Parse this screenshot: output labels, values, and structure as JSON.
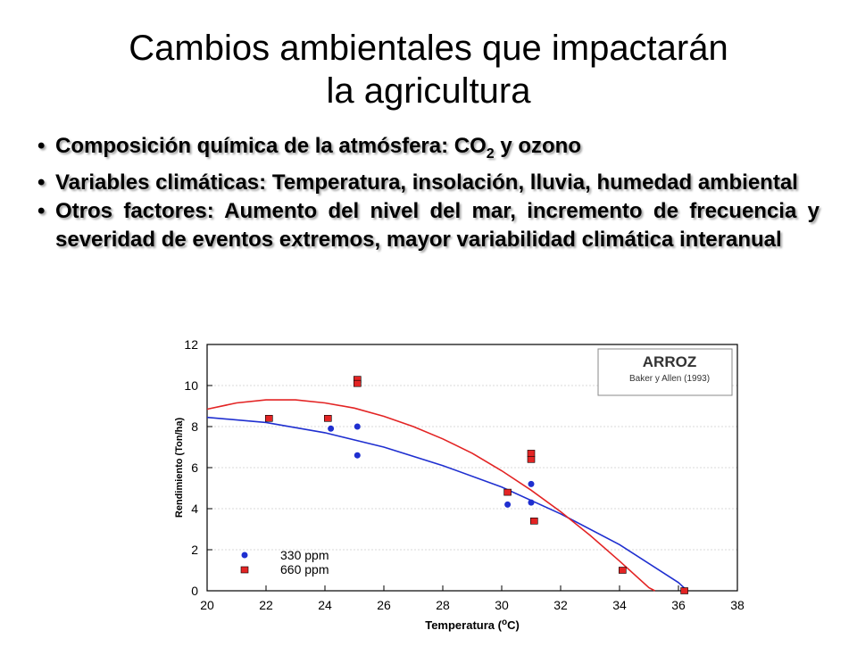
{
  "slide": {
    "title_line1": "Cambios ambientales que impactarán",
    "title_line2": "la agricultura",
    "bullets": [
      {
        "pre": "Composición química de la atmósfera: CO",
        "sub": "2",
        "post": " y ozono"
      },
      {
        "text": "Variables climáticas: Temperatura, insolación, lluvia, humedad ambiental"
      },
      {
        "text": "Otros factores: Aumento del nivel del mar, incremento de frecuencia y severidad de eventos extremos, mayor variabilidad climática interanual"
      }
    ]
  },
  "chart_data": {
    "type": "scatter",
    "title": "ARROZ",
    "subtitle": "Baker y Allen (1993)",
    "xlabel": "Temperatura (°C)",
    "ylabel": "Rendimiento (Ton/ha)",
    "xlim": [
      20,
      38
    ],
    "ylim": [
      0,
      12
    ],
    "xticks": [
      20,
      22,
      24,
      26,
      28,
      30,
      32,
      34,
      36,
      38
    ],
    "yticks": [
      0,
      2,
      4,
      6,
      8,
      10,
      12
    ],
    "legend_position": "bottom-left",
    "series": [
      {
        "name": "330 ppm",
        "color": "#1f2fd0",
        "marker": "circle",
        "points": [
          [
            24.2,
            7.9
          ],
          [
            25.1,
            8.0
          ],
          [
            25.1,
            6.6
          ],
          [
            30.2,
            4.2
          ],
          [
            30.2,
            4.8
          ],
          [
            31.0,
            5.2
          ],
          [
            31.0,
            4.3
          ],
          [
            36.2,
            0.0
          ]
        ],
        "fit": [
          [
            20,
            8.45
          ],
          [
            22,
            8.2
          ],
          [
            24,
            7.7
          ],
          [
            26,
            7.0
          ],
          [
            28,
            6.1
          ],
          [
            30,
            5.05
          ],
          [
            32,
            3.75
          ],
          [
            34,
            2.25
          ],
          [
            36,
            0.4
          ],
          [
            36.3,
            0.0
          ]
        ]
      },
      {
        "name": "660 ppm",
        "color": "#e32424",
        "marker": "square",
        "points": [
          [
            22.1,
            8.4
          ],
          [
            24.1,
            8.4
          ],
          [
            25.1,
            10.3
          ],
          [
            25.1,
            10.1
          ],
          [
            30.2,
            4.8
          ],
          [
            31.0,
            6.7
          ],
          [
            31.0,
            6.4
          ],
          [
            31.1,
            3.4
          ],
          [
            34.1,
            1.0
          ],
          [
            36.2,
            0.0
          ]
        ],
        "fit": [
          [
            20,
            8.85
          ],
          [
            21,
            9.15
          ],
          [
            22,
            9.3
          ],
          [
            23,
            9.3
          ],
          [
            24,
            9.15
          ],
          [
            25,
            8.9
          ],
          [
            26,
            8.5
          ],
          [
            27,
            8.0
          ],
          [
            28,
            7.4
          ],
          [
            29,
            6.7
          ],
          [
            30,
            5.85
          ],
          [
            31,
            4.9
          ],
          [
            32,
            3.85
          ],
          [
            33,
            2.7
          ],
          [
            34,
            1.45
          ],
          [
            35,
            0.15
          ],
          [
            35.2,
            0.0
          ]
        ]
      }
    ]
  }
}
